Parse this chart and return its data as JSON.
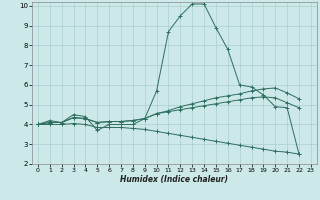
{
  "xlabel": "Humidex (Indice chaleur)",
  "bg_color": "#cce8e8",
  "grid_color": "#aacfcf",
  "line_color": "#2e6e60",
  "xlim": [
    -0.5,
    23.5
  ],
  "ylim": [
    2,
    10.2
  ],
  "yticks": [
    2,
    3,
    4,
    5,
    6,
    7,
    8,
    9,
    10
  ],
  "xticks": [
    0,
    1,
    2,
    3,
    4,
    5,
    6,
    7,
    8,
    9,
    10,
    11,
    12,
    13,
    14,
    15,
    16,
    17,
    18,
    19,
    20,
    21,
    22,
    23
  ],
  "series": [
    {
      "x": [
        0,
        1,
        2,
        3,
        4,
        5,
        6,
        7,
        8,
        9,
        10,
        11,
        12,
        13,
        14,
        15,
        16,
        17,
        18,
        19,
        20,
        21,
        22
      ],
      "y": [
        4.0,
        4.2,
        4.1,
        4.5,
        4.4,
        3.7,
        4.0,
        4.0,
        4.0,
        4.3,
        5.7,
        8.7,
        9.5,
        10.1,
        10.1,
        8.9,
        7.8,
        6.0,
        5.9,
        5.5,
        4.9,
        4.85,
        2.5
      ]
    },
    {
      "x": [
        0,
        1,
        2,
        3,
        4,
        5,
        6,
        7,
        8,
        9,
        10,
        11,
        12,
        13,
        14,
        15,
        16,
        17,
        18,
        19,
        20,
        21,
        22
      ],
      "y": [
        4.0,
        4.1,
        4.1,
        4.35,
        4.3,
        4.1,
        4.15,
        4.15,
        4.2,
        4.3,
        4.55,
        4.7,
        4.9,
        5.05,
        5.2,
        5.35,
        5.45,
        5.55,
        5.7,
        5.8,
        5.85,
        5.6,
        5.3
      ]
    },
    {
      "x": [
        0,
        1,
        2,
        3,
        4,
        5,
        6,
        7,
        8,
        9,
        10,
        11,
        12,
        13,
        14,
        15,
        16,
        17,
        18,
        19,
        20,
        21,
        22
      ],
      "y": [
        4.0,
        4.1,
        4.1,
        4.35,
        4.3,
        4.1,
        4.15,
        4.15,
        4.2,
        4.3,
        4.55,
        4.65,
        4.75,
        4.85,
        4.95,
        5.05,
        5.15,
        5.25,
        5.35,
        5.4,
        5.35,
        5.1,
        4.85
      ]
    },
    {
      "x": [
        0,
        1,
        2,
        3,
        4,
        5,
        6,
        7,
        8,
        9,
        10,
        11,
        12,
        13,
        14,
        15,
        16,
        17,
        18,
        19,
        20,
        21,
        22
      ],
      "y": [
        4.0,
        4.0,
        4.0,
        4.05,
        4.0,
        3.85,
        3.85,
        3.85,
        3.8,
        3.75,
        3.65,
        3.55,
        3.45,
        3.35,
        3.25,
        3.15,
        3.05,
        2.95,
        2.85,
        2.75,
        2.65,
        2.6,
        2.5
      ]
    }
  ]
}
